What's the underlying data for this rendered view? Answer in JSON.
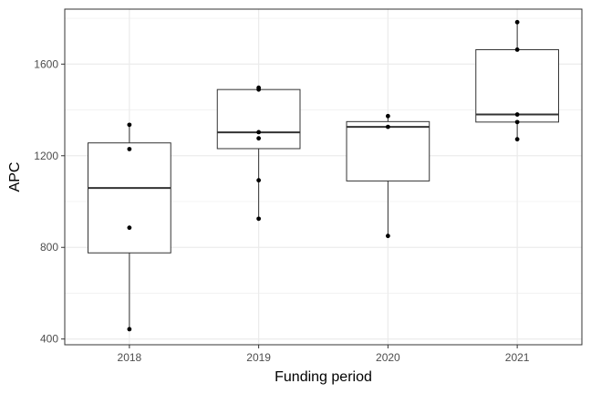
{
  "chart_data": {
    "type": "box",
    "xlabel": "Funding period",
    "ylabel": "APC",
    "ylim": [
      375,
      1840
    ],
    "y_ticks": [
      400,
      800,
      1200,
      1600
    ],
    "y_minor_ticks": [
      600,
      1000,
      1400,
      1800
    ],
    "grid": true,
    "categories": [
      "2018",
      "2019",
      "2020",
      "2021"
    ],
    "boxes": [
      {
        "category": "2018",
        "lower_whisker": 443,
        "q1": 776,
        "median": 1059,
        "q3": 1256,
        "upper_whisker": 1335
      },
      {
        "category": "2019",
        "lower_whisker": 925,
        "q1": 1231,
        "median": 1302,
        "q3": 1489,
        "upper_whisker": 1497
      },
      {
        "category": "2020",
        "lower_whisker": 850,
        "q1": 1090,
        "median": 1326,
        "q3": 1349,
        "upper_whisker": 1373
      },
      {
        "category": "2021",
        "lower_whisker": 1272,
        "q1": 1347,
        "median": 1380,
        "q3": 1663,
        "upper_whisker": 1783
      }
    ],
    "points": [
      {
        "category": "2018",
        "values": [
          443,
          886,
          1229,
          1335
        ]
      },
      {
        "category": "2019",
        "values": [
          925,
          1093,
          1276,
          1303,
          1489,
          1497
        ]
      },
      {
        "category": "2020",
        "values": [
          850,
          1326,
          1373
        ]
      },
      {
        "category": "2021",
        "values": [
          1272,
          1347,
          1380,
          1663,
          1783
        ]
      }
    ],
    "colors": {
      "panel_border": "#333333",
      "grid": "#ebebeb",
      "box_line": "#333333",
      "point": "#000000",
      "tick_label": "#4d4d4d"
    }
  }
}
